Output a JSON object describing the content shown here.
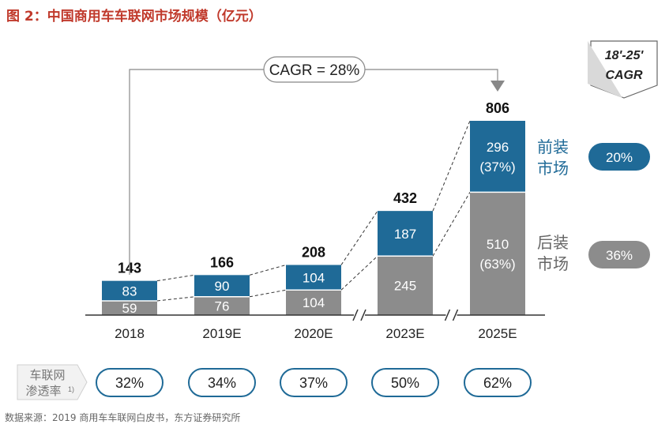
{
  "title": "图 2：中国商用车车联网市场规模（亿元）",
  "source": "数据来源：2019 商用车车联网白皮书，东方证券研究所",
  "colors": {
    "front": "#1f6a97",
    "after": "#8c8c8c",
    "title": "#c0392b",
    "front_text": "#1f6a97",
    "after_text": "#666666"
  },
  "cagr_box": {
    "label": "CAGR = 28%"
  },
  "cagr_header": {
    "line1": "18'-25'",
    "line2": "CAGR"
  },
  "segment_labels": {
    "front": {
      "line1": "前装",
      "line2": "市场",
      "cagr": "20%"
    },
    "after": {
      "line1": "后装",
      "line2": "市场",
      "cagr": "36%"
    }
  },
  "penetration_label": {
    "line1": "车联网",
    "line2": "渗透率",
    "note": "1)"
  },
  "chart_data": {
    "type": "bar",
    "stacked": true,
    "categories": [
      "2018",
      "2019E",
      "2020E",
      "2023E",
      "2025E"
    ],
    "series": [
      {
        "name": "后装市场",
        "values": [
          59,
          76,
          104,
          245,
          510
        ]
      },
      {
        "name": "前装市场",
        "values": [
          83,
          90,
          104,
          187,
          296
        ]
      }
    ],
    "totals": [
      143,
      166,
      208,
      432,
      806
    ],
    "segment_text": {
      "after": [
        "59",
        "76",
        "104",
        "245",
        "510\n(63%)"
      ],
      "front": [
        "83",
        "90",
        "104",
        "187",
        "296\n(37%)"
      ]
    },
    "penetration": [
      "32%",
      "34%",
      "37%",
      "50%",
      "62%"
    ],
    "axis_breaks_before": [
      "2023E",
      "2025E"
    ],
    "ylim": [
      0,
      806
    ]
  }
}
